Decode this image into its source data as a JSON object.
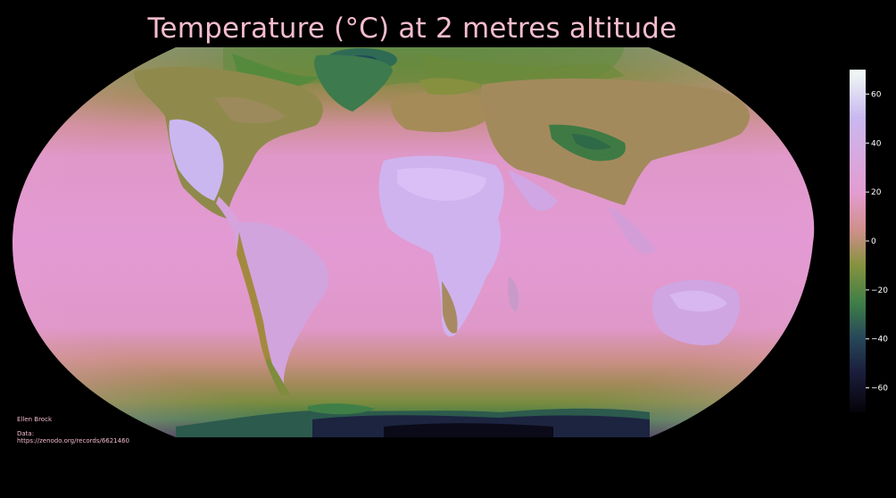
{
  "title": "Temperature (°C) at 2 metres altitude",
  "credits": {
    "author": "Ellen Brock",
    "data_label": "Data:",
    "data_url": "https://zenodo.org/records/6621460"
  },
  "colorbar": {
    "ticks": [
      "60",
      "40",
      "20",
      "0",
      "−20",
      "−40",
      "−60"
    ],
    "range": [
      -70,
      70
    ],
    "colors": {
      "top": "#f2fbf5",
      "light_lavender": "#c9b8f0",
      "pink": "#e39ccf",
      "salmon": "#cf8f8a",
      "olive": "#86923e",
      "green": "#3f7f47",
      "teal": "#27495a",
      "navy": "#1b1f3d",
      "bottom": "#050208"
    }
  },
  "colors": {
    "title": "#f4bccd",
    "tick_text": "#ffffff",
    "credit_text": "#f4bccd",
    "ocean_pink": "#e09ad2",
    "land_lavender": "#cba7ef",
    "polar_olive": "#8d8c46",
    "arctic_green": "#4f8f45",
    "antarctic_dark": "#151d36"
  }
}
